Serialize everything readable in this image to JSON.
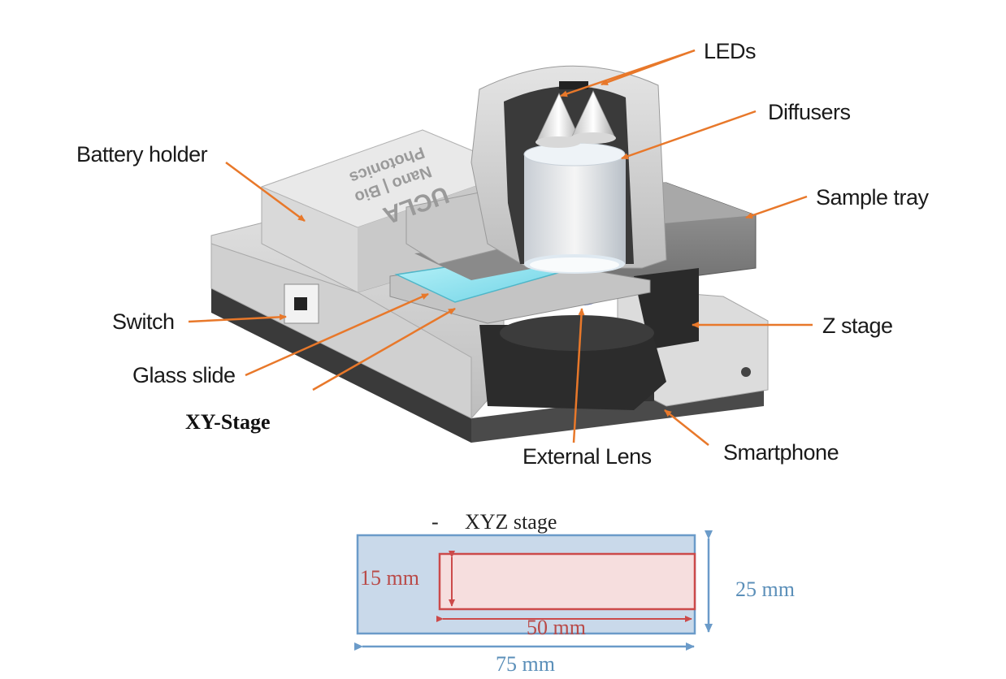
{
  "labels": {
    "leds": "LEDs",
    "diffusers": "Diffusers",
    "battery_holder": "Battery holder",
    "sample_tray": "Sample tray",
    "switch": "Switch",
    "z_stage": "Z stage",
    "glass_slide": "Glass slide",
    "xy_stage": "XY-Stage",
    "external_lens": "External Lens",
    "smartphone": "Smartphone"
  },
  "device_logo_text": {
    "line1": "UCLA",
    "line2": "Nano | Bio",
    "line3": "Photonics"
  },
  "dimension_diagram": {
    "bullet": "-",
    "title": "XYZ stage",
    "inner_height": "15 mm",
    "outer_height": "25 mm",
    "inner_width": "50 mm",
    "outer_width": "75 mm"
  },
  "colors": {
    "callout_orange": "#e8782a",
    "outer_stroke": "#6b9bc9",
    "outer_fill": "#c9d9ea",
    "inner_stroke": "#cc4a4a",
    "inner_fill": "#f6dede",
    "glass_slide": "#8fe3ef"
  }
}
